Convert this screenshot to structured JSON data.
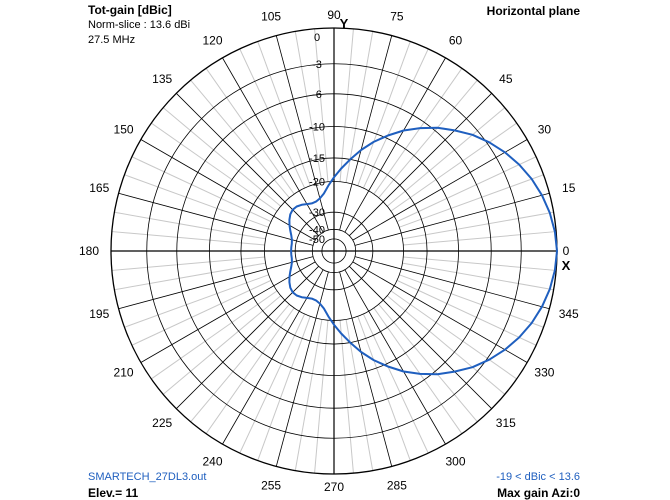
{
  "header": {
    "title": "Tot-gain [dBic]",
    "norm_slice": "Norm-slice : 13.6 dBi",
    "frequency": "27.5 MHz",
    "plane": "Horizontal plane"
  },
  "footer": {
    "file": "SMARTECH_27DL3.out",
    "elevation": "Elev.= 11",
    "range": "-19 < dBic < 13.6",
    "max_gain": "Max gain Azi:0"
  },
  "colors": {
    "pattern": "#1f5fbf",
    "grid": "#000000",
    "minor_grid": "#c8c8c8"
  },
  "chart_data": {
    "type": "polar",
    "title": "Horizontal plane",
    "angle_unit": "degrees",
    "angle_ticks": [
      0,
      15,
      30,
      45,
      60,
      75,
      90,
      105,
      120,
      135,
      150,
      165,
      180,
      195,
      210,
      225,
      240,
      255,
      270,
      285,
      300,
      315,
      330,
      345
    ],
    "angle_tick_labels": [
      "0",
      "15",
      "30",
      "45",
      "60",
      "75",
      "90",
      "105",
      "120",
      "135",
      "150",
      "165",
      "180",
      "195",
      "210",
      "225",
      "240",
      "255",
      "270",
      "285",
      "300",
      "315",
      "330",
      "345"
    ],
    "axis_labels": {
      "x": "X",
      "y": "Y"
    },
    "radial_ticks": [
      0,
      -3,
      -6,
      -10,
      -15,
      -20,
      -30,
      -40,
      -50
    ],
    "radial_tick_labels": [
      "0",
      "-3",
      "-6",
      "-10",
      "-15",
      "-20",
      "-30",
      "-40",
      "-50"
    ],
    "radial_unit": "dB (normalized)",
    "series": [
      {
        "azimuth": [
          0,
          5,
          10,
          15,
          20,
          25,
          30,
          35,
          40,
          45,
          50,
          55,
          60,
          65,
          70,
          75,
          80,
          85,
          90,
          95,
          100,
          105,
          110,
          115,
          120,
          125,
          130,
          135,
          140,
          145,
          150,
          155,
          160,
          165,
          170,
          175,
          180
        ],
        "gain_db": [
          0,
          -0.1,
          -0.3,
          -0.6,
          -1.0,
          -1.5,
          -2.1,
          -2.8,
          -3.6,
          -4.6,
          -5.6,
          -6.8,
          -8.1,
          -9.6,
          -11.2,
          -13.0,
          -15.0,
          -17.0,
          -19.0,
          -21.0,
          -23.0,
          -24.2,
          -24.8,
          -24.8,
          -24.3,
          -23.6,
          -23.1,
          -23.0,
          -23.4,
          -24.2,
          -25.2,
          -26.3,
          -27.3,
          -28.0,
          -28.3,
          -28.3,
          -28.3
        ]
      }
    ],
    "symmetric_about_x_axis": true,
    "max_gain_azimuth": 0
  }
}
